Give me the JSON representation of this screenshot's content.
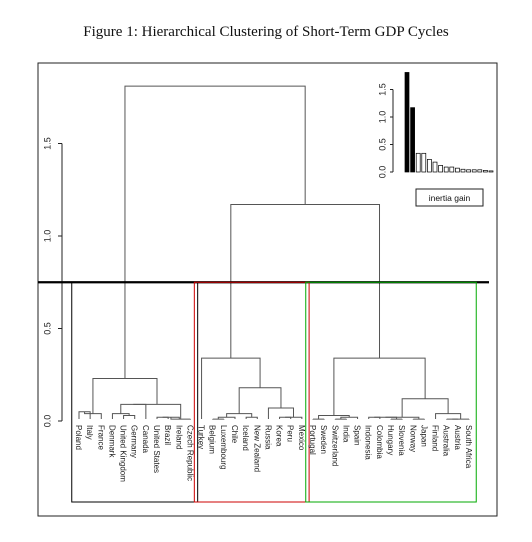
{
  "figure_title": "Figure 1: Hierarchical Clustering of Short-Term GDP Cycles",
  "chart_data": {
    "type": "dendrogram",
    "y_axis": {
      "range": [
        0.0,
        1.85
      ],
      "ticks": [
        "0.0",
        "0.5",
        "1.0",
        "1.5"
      ],
      "tick_values": [
        0.0,
        0.5,
        1.0,
        1.5
      ]
    },
    "cut_height": 0.75,
    "leaves": [
      "Poland",
      "Italy",
      "France",
      "Denmark",
      "United Kingdom",
      "Germany",
      "Canada",
      "United States",
      "Brazil",
      "Ireland",
      "Czech Republic",
      "Turkey",
      "Belgium",
      "Luxembourg",
      "Chile",
      "Iceland",
      "New Zealand",
      "Russia",
      "Korea",
      "Peru",
      "Mexico",
      "Portugal",
      "Sweden",
      "Switzerland",
      "India",
      "Spain",
      "Indonesia",
      "Colombia",
      "Hungary",
      "Slovenia",
      "Norway",
      "Japan",
      "Finland",
      "Australia",
      "Austria",
      "South Africa"
    ],
    "merges": [
      {
        "id": "m1",
        "left": "L0",
        "right": "L1",
        "height": 0.05
      },
      {
        "id": "m2",
        "left": "m1",
        "right": "L2",
        "height": 0.04
      },
      {
        "id": "m3",
        "left": "L4",
        "right": "L5",
        "height": 0.03
      },
      {
        "id": "m4",
        "left": "L3",
        "right": "m3",
        "height": 0.04
      },
      {
        "id": "m5",
        "left": "m4",
        "right": "L6",
        "height": 0.09
      },
      {
        "id": "m6",
        "left": "L7",
        "right": "L8",
        "height": 0.02
      },
      {
        "id": "m7",
        "left": "m6",
        "right": "L9",
        "height": 0.02
      },
      {
        "id": "m8",
        "left": "m7",
        "right": "L10",
        "height": 0.01
      },
      {
        "id": "m9",
        "left": "m5",
        "right": "m8",
        "height": 0.09
      },
      {
        "id": "m10",
        "left": "m2",
        "right": "m9",
        "height": 0.23
      },
      {
        "id": "m11",
        "left": "L12",
        "right": "L13",
        "height": 0.01
      },
      {
        "id": "m12",
        "left": "m11",
        "right": "L14",
        "height": 0.02
      },
      {
        "id": "m13",
        "left": "L15",
        "right": "L16",
        "height": 0.02
      },
      {
        "id": "m14",
        "left": "m12",
        "right": "m13",
        "height": 0.04
      },
      {
        "id": "m15",
        "left": "L18",
        "right": "L19",
        "height": 0.02
      },
      {
        "id": "m16",
        "left": "m15",
        "right": "L20",
        "height": 0.02
      },
      {
        "id": "m17",
        "left": "L17",
        "right": "m16",
        "height": 0.07
      },
      {
        "id": "m18",
        "left": "m14",
        "right": "m17",
        "height": 0.18
      },
      {
        "id": "m19",
        "left": "L11",
        "right": "m18",
        "height": 0.34
      },
      {
        "id": "m20",
        "left": "L21",
        "right": "L22",
        "height": 0.01
      },
      {
        "id": "m21",
        "left": "L23",
        "right": "L24",
        "height": 0.01
      },
      {
        "id": "m22",
        "left": "m21",
        "right": "L25",
        "height": 0.02
      },
      {
        "id": "m23",
        "left": "m20",
        "right": "m22",
        "height": 0.03
      },
      {
        "id": "m24",
        "left": "L26",
        "right": "L27",
        "height": 0.02
      },
      {
        "id": "m25",
        "left": "L28",
        "right": "L29",
        "height": 0.01
      },
      {
        "id": "m26",
        "left": "m24",
        "right": "m25",
        "height": 0.02
      },
      {
        "id": "m27",
        "left": "L30",
        "right": "L31",
        "height": 0.01
      },
      {
        "id": "m28",
        "left": "m26",
        "right": "m27",
        "height": 0.02
      },
      {
        "id": "m29",
        "left": "L33",
        "right": "L34",
        "height": 0.01
      },
      {
        "id": "m30",
        "left": "m29",
        "right": "L35",
        "height": 0.01
      },
      {
        "id": "m31",
        "left": "L32",
        "right": "m30",
        "height": 0.04
      },
      {
        "id": "m32",
        "left": "m28",
        "right": "m31",
        "height": 0.12
      },
      {
        "id": "m33",
        "left": "m23",
        "right": "m32",
        "height": 0.34
      },
      {
        "id": "m34",
        "left": "m19",
        "right": "m33",
        "height": 1.17
      },
      {
        "id": "m35",
        "left": "m10",
        "right": "m34",
        "height": 1.81
      }
    ],
    "clusters": [
      {
        "leaves": [
          0,
          10
        ],
        "color": "#000000"
      },
      {
        "leaves": [
          11,
          20
        ],
        "color": "#cc0000"
      },
      {
        "leaves": [
          21,
          35
        ],
        "color": "#00aa00"
      }
    ],
    "inset": {
      "type": "bar",
      "legend": "inertia gain",
      "values": [
        1.81,
        1.17,
        0.34,
        0.34,
        0.23,
        0.18,
        0.12,
        0.09,
        0.09,
        0.07,
        0.05,
        0.04,
        0.04,
        0.04,
        0.03,
        0.02
      ],
      "y_axis": {
        "range": [
          0.0,
          1.85
        ],
        "ticks": [
          "0.0",
          "0.5",
          "1.0",
          "1.5"
        ],
        "tick_values": [
          0.0,
          0.5,
          1.0,
          1.5
        ]
      }
    }
  }
}
